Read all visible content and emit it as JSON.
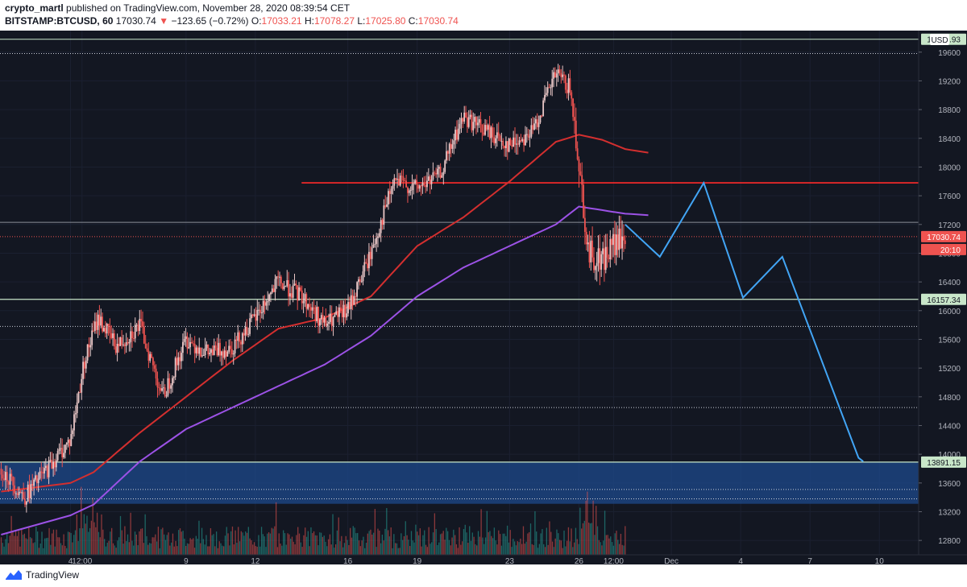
{
  "header": {
    "author": "crypto_martl",
    "published": "published on TradingView.com, November 28, 2020 08:39:54 CET",
    "symbol": "BITSTAMP:BTCUSD, 60",
    "last": "17030.74",
    "change_arrow": "▼",
    "change": "−123.65 (−0.72%)",
    "o_label": "O:",
    "o": "17033.21",
    "h_label": "H:",
    "h": "17078.27",
    "l_label": "L:",
    "l": "17025.80",
    "c_label": "C:",
    "c": "17030.74"
  },
  "footer": {
    "brand": "TradingView",
    "logo_icon": "tradingview-logo-icon"
  },
  "colors": {
    "background": "#131722",
    "up": "#e8c6c6",
    "down": "#ef5350",
    "volume_up": "#26a69a",
    "volume_down": "#ef5350",
    "ma_red": "#d32f2f",
    "ma_purple": "#9c52e6",
    "projection": "#42a5f5",
    "resistance": "#ff2a2a",
    "zone": "#1e4a8c",
    "support_line": "#c8e6c9",
    "dotted": "#c8ccd6"
  },
  "chart_data": {
    "type": "candlestick",
    "interval": "60",
    "currency": "USD",
    "ylim": [
      12600,
      19900
    ],
    "y_ticks": [
      12800,
      13200,
      13600,
      14000,
      14400,
      14800,
      15200,
      15600,
      16000,
      16400,
      16800,
      17200,
      17600,
      18000,
      18400,
      18800,
      19200,
      19600
    ],
    "x_ticks": [
      {
        "label": "4",
        "t": 3
      },
      {
        "label": "12:00",
        "t": 3.5
      },
      {
        "label": "9",
        "t": 8
      },
      {
        "label": "12",
        "t": 11
      },
      {
        "label": "16",
        "t": 15
      },
      {
        "label": "19",
        "t": 18
      },
      {
        "label": "23",
        "t": 22
      },
      {
        "label": "26",
        "t": 25
      },
      {
        "label": "12:00",
        "t": 26.5
      },
      {
        "label": "Dec",
        "t": 29
      },
      {
        "label": "4",
        "t": 32
      },
      {
        "label": "7",
        "t": 35
      },
      {
        "label": "10",
        "t": 38
      }
    ],
    "price_anchors": [
      [
        0,
        13800
      ],
      [
        1,
        13400
      ],
      [
        2,
        13800
      ],
      [
        3,
        14200
      ],
      [
        3.6,
        15300
      ],
      [
        4.2,
        15900
      ],
      [
        5,
        15500
      ],
      [
        6,
        15800
      ],
      [
        7,
        14800
      ],
      [
        8,
        15600
      ],
      [
        9,
        15400
      ],
      [
        10,
        15500
      ],
      [
        11,
        15900
      ],
      [
        12,
        16400
      ],
      [
        13,
        16200
      ],
      [
        14,
        15800
      ],
      [
        15,
        16000
      ],
      [
        16,
        16800
      ],
      [
        17,
        17800
      ],
      [
        18,
        17700
      ],
      [
        19,
        17900
      ],
      [
        20,
        18700
      ],
      [
        21,
        18500
      ],
      [
        22,
        18300
      ],
      [
        23,
        18500
      ],
      [
        24,
        19300
      ],
      [
        24.6,
        19100
      ],
      [
        25,
        18100
      ],
      [
        25.4,
        16800
      ],
      [
        26,
        16700
      ],
      [
        26.5,
        16900
      ],
      [
        27,
        17000
      ]
    ],
    "last_price": 17030.74,
    "price_labels": {
      "last": "17030.74",
      "countdown": "20:10",
      "support": "16157.34",
      "zone_top": "13891.15",
      "top_level": "19800.93"
    },
    "levels": {
      "top_solid": 19780,
      "top_dotted": 19580,
      "resistance": 17780,
      "grey_1": 17230,
      "support": 16157.34,
      "dotted": [
        15780,
        14650,
        13510,
        13380
      ],
      "zone": [
        13310,
        13891.15
      ]
    },
    "resistance_start_t": 13,
    "ma_red_anchors": [
      [
        0,
        13480
      ],
      [
        3,
        13600
      ],
      [
        4,
        13750
      ],
      [
        6,
        14300
      ],
      [
        8,
        14800
      ],
      [
        10,
        15300
      ],
      [
        12,
        15750
      ],
      [
        14,
        15900
      ],
      [
        16,
        16200
      ],
      [
        18,
        16900
      ],
      [
        20,
        17300
      ],
      [
        22,
        17800
      ],
      [
        24,
        18350
      ],
      [
        25,
        18450
      ],
      [
        26,
        18380
      ],
      [
        27,
        18250
      ],
      [
        28,
        18200
      ]
    ],
    "ma_purple_anchors": [
      [
        0,
        12880
      ],
      [
        3,
        13150
      ],
      [
        4,
        13300
      ],
      [
        6,
        13900
      ],
      [
        8,
        14350
      ],
      [
        10,
        14650
      ],
      [
        12,
        14950
      ],
      [
        14,
        15250
      ],
      [
        16,
        15650
      ],
      [
        18,
        16200
      ],
      [
        20,
        16600
      ],
      [
        22,
        16900
      ],
      [
        24,
        17200
      ],
      [
        25,
        17450
      ],
      [
        26,
        17400
      ],
      [
        27,
        17350
      ],
      [
        28,
        17330
      ]
    ],
    "projection": [
      [
        27,
        17200
      ],
      [
        28.5,
        16750
      ],
      [
        30.4,
        17780
      ],
      [
        32.1,
        16180
      ],
      [
        33.8,
        16750
      ],
      [
        37.1,
        13950
      ],
      [
        37.3,
        13900
      ]
    ]
  }
}
